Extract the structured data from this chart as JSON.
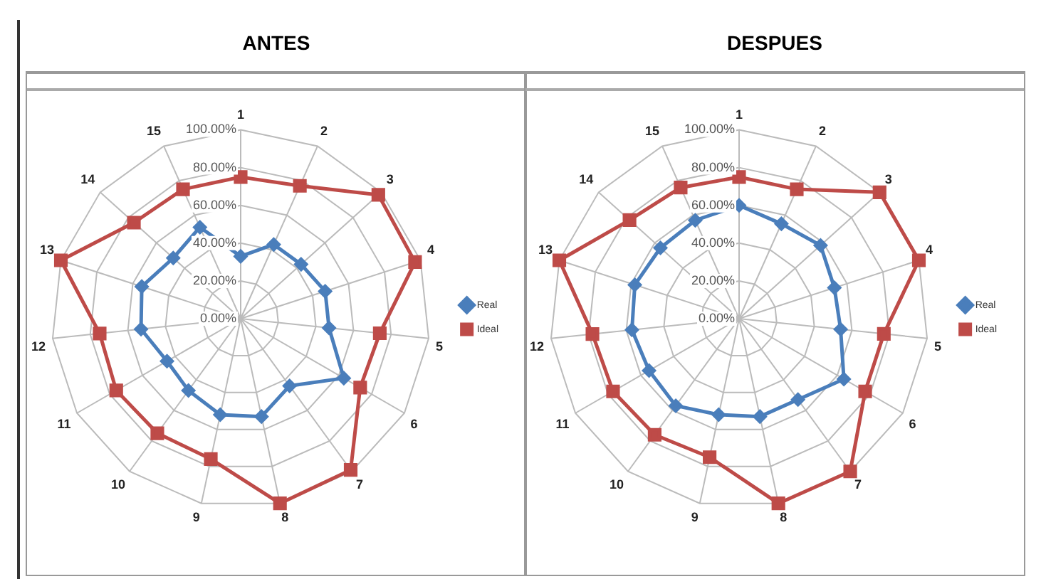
{
  "chart_data": [
    {
      "type": "radar",
      "title": "ANTES",
      "categories": [
        "1",
        "2",
        "3",
        "4",
        "5",
        "6",
        "7",
        "8",
        "9",
        "10",
        "11",
        "12",
        "13",
        "14",
        "15"
      ],
      "series": [
        {
          "name": "Real",
          "color": "#4a7ebb",
          "marker": "diamond",
          "values": [
            33,
            43,
            43,
            47,
            47,
            63,
            44,
            53,
            52,
            47,
            45,
            53,
            55,
            48,
            53
          ]
        },
        {
          "name": "Ideal",
          "color": "#be4b48",
          "marker": "square",
          "values": [
            75,
            77,
            98,
            97,
            74,
            73,
            99,
            100,
            76,
            75,
            76,
            75,
            100,
            76,
            75
          ]
        }
      ],
      "ylim": [
        0,
        100
      ],
      "yticks": [
        {
          "value": 0,
          "label": "0.00%"
        },
        {
          "value": 20,
          "label": "20.00%"
        },
        {
          "value": 40,
          "label": "40.00%"
        },
        {
          "value": 60,
          "label": "60.00%"
        },
        {
          "value": 80,
          "label": "80.00%"
        },
        {
          "value": 100,
          "label": "100.00%"
        }
      ],
      "grid": true,
      "legend": "right"
    },
    {
      "type": "radar",
      "title": "DESPUES",
      "categories": [
        "1",
        "2",
        "3",
        "4",
        "5",
        "6",
        "7",
        "8",
        "9",
        "10",
        "11",
        "12",
        "13",
        "14",
        "15"
      ],
      "series": [
        {
          "name": "Real",
          "color": "#4a7ebb",
          "marker": "diamond",
          "values": [
            60,
            55,
            58,
            53,
            54,
            64,
            53,
            53,
            52,
            57,
            55,
            57,
            58,
            56,
            57
          ]
        },
        {
          "name": "Ideal",
          "color": "#be4b48",
          "marker": "square",
          "values": [
            75,
            75,
            100,
            100,
            77,
            77,
            100,
            100,
            75,
            76,
            77,
            78,
            100,
            78,
            76
          ]
        }
      ],
      "ylim": [
        0,
        100
      ],
      "yticks": [
        {
          "value": 0,
          "label": "0.00%"
        },
        {
          "value": 20,
          "label": "20.00%"
        },
        {
          "value": 40,
          "label": "40.00%"
        },
        {
          "value": 60,
          "label": "60.00%"
        },
        {
          "value": 80,
          "label": "80.00%"
        },
        {
          "value": 100,
          "label": "100.00%"
        }
      ],
      "grid": true,
      "legend": "right"
    }
  ]
}
